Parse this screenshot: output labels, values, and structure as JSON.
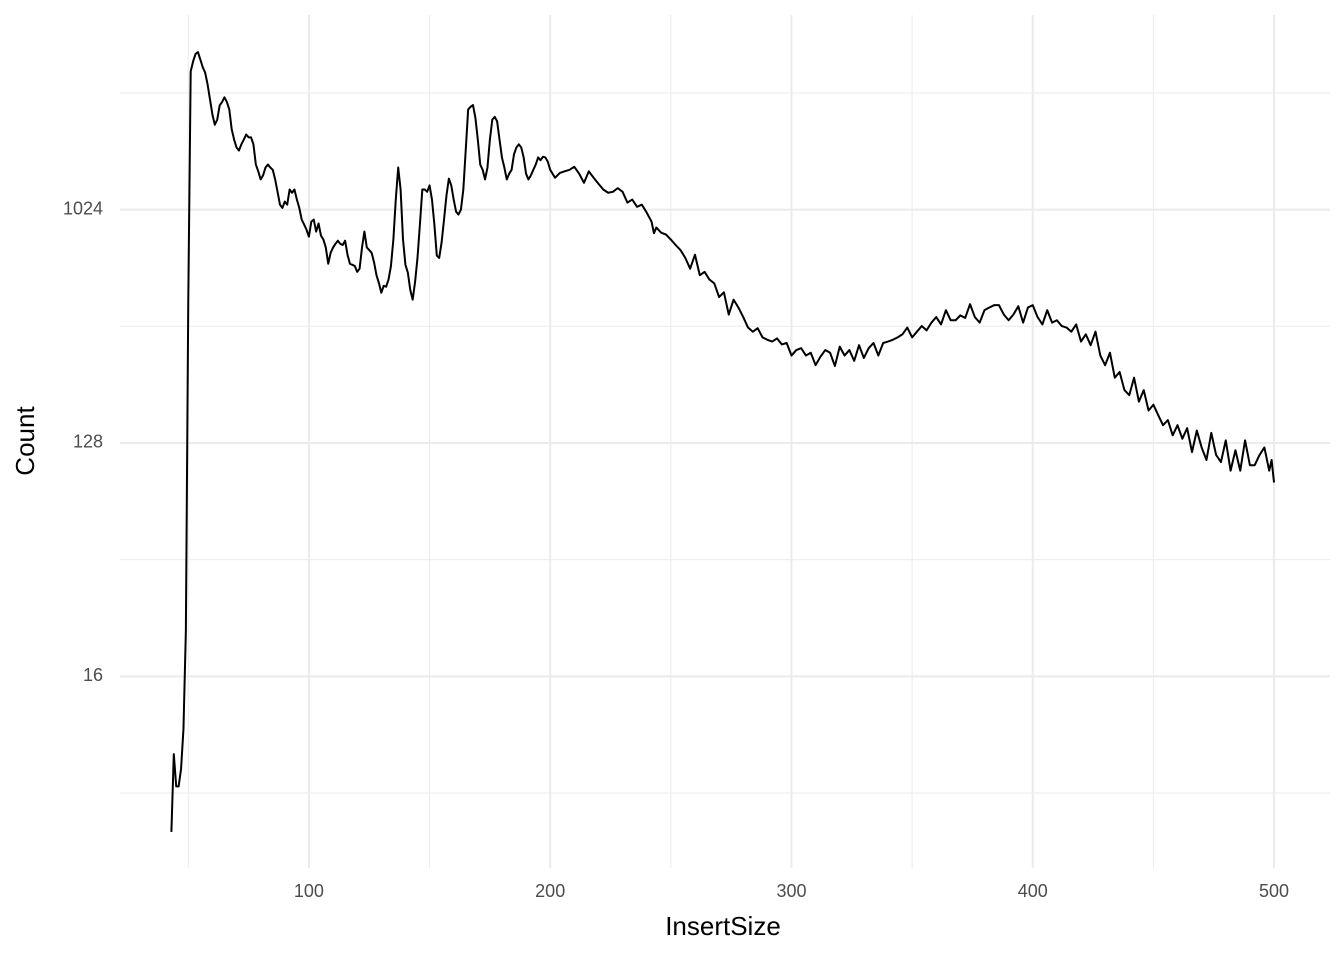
{
  "chart_data": {
    "type": "line",
    "xlabel": "InsertSize",
    "ylabel": "Count",
    "log_y": true,
    "log_base": 2,
    "grid": true,
    "color": "#000000",
    "xlim": [
      21.7,
      523.2
    ],
    "xticks": [
      100,
      200,
      300,
      400,
      500
    ],
    "x_minor_ticks": [
      50,
      150,
      250,
      350,
      450
    ],
    "ylim": [
      2.9,
      5800
    ],
    "yticks": [
      16,
      128,
      1024
    ],
    "y_minor_ticks": [
      5.66,
      45.25,
      362,
      2896
    ],
    "x": [
      43,
      44,
      45,
      46,
      47,
      48,
      49,
      50,
      51,
      52,
      53,
      54,
      55,
      56,
      57,
      58,
      59,
      60,
      61,
      62,
      63,
      64,
      65,
      66,
      67,
      68,
      69,
      70,
      71,
      72,
      73,
      74,
      75,
      76,
      77,
      78,
      79,
      80,
      81,
      82,
      83,
      84,
      85,
      86,
      87,
      88,
      89,
      90,
      91,
      92,
      93,
      94,
      95,
      96,
      97,
      98,
      99,
      100,
      101,
      102,
      103,
      104,
      105,
      106,
      107,
      108,
      109,
      110,
      111,
      112,
      113,
      114,
      115,
      116,
      117,
      118,
      119,
      120,
      121,
      122,
      123,
      124,
      125,
      126,
      127,
      128,
      129,
      130,
      131,
      132,
      133,
      134,
      135,
      136,
      137,
      138,
      139,
      140,
      141,
      142,
      143,
      144,
      145,
      146,
      147,
      148,
      149,
      150,
      151,
      152,
      153,
      154,
      155,
      156,
      157,
      158,
      159,
      160,
      161,
      162,
      163,
      164,
      165,
      166,
      167,
      168,
      169,
      170,
      171,
      172,
      173,
      174,
      175,
      176,
      177,
      178,
      179,
      180,
      181,
      182,
      183,
      184,
      185,
      186,
      187,
      188,
      189,
      190,
      191,
      192,
      193,
      194,
      195,
      196,
      197,
      198,
      199,
      200,
      202,
      204,
      206,
      208,
      210,
      212,
      214,
      216,
      218,
      220,
      222,
      224,
      226,
      228,
      230,
      232,
      234,
      236,
      238,
      240,
      242,
      243,
      244,
      246,
      248,
      250,
      252,
      254,
      256,
      258,
      260,
      262,
      264,
      266,
      268,
      270,
      272,
      274,
      276,
      278,
      280,
      282,
      284,
      286,
      288,
      290,
      292,
      294,
      296,
      298,
      300,
      302,
      304,
      306,
      308,
      310,
      312,
      314,
      316,
      318,
      320,
      322,
      324,
      326,
      328,
      330,
      332,
      334,
      336,
      338,
      340,
      342,
      344,
      346,
      348,
      350,
      352,
      354,
      356,
      358,
      360,
      362,
      364,
      366,
      368,
      370,
      372,
      374,
      376,
      378,
      380,
      382,
      384,
      386,
      388,
      390,
      392,
      394,
      396,
      398,
      400,
      402,
      404,
      406,
      408,
      410,
      412,
      414,
      416,
      418,
      420,
      422,
      424,
      426,
      428,
      430,
      432,
      434,
      436,
      438,
      440,
      442,
      444,
      446,
      448,
      450,
      452,
      454,
      456,
      458,
      460,
      462,
      464,
      466,
      468,
      470,
      472,
      474,
      476,
      478,
      480,
      482,
      484,
      486,
      488,
      490,
      492,
      494,
      496,
      498,
      499,
      500
    ],
    "values": [
      4,
      8,
      6,
      6,
      7,
      10,
      24,
      459,
      3510,
      3838,
      4096,
      4170,
      3900,
      3640,
      3470,
      3126,
      2733,
      2390,
      2182,
      2283,
      2590,
      2670,
      2785,
      2670,
      2500,
      2093,
      1910,
      1782,
      1733,
      1832,
      1910,
      2000,
      1950,
      1950,
      1832,
      1530,
      1440,
      1340,
      1390,
      1490,
      1530,
      1490,
      1460,
      1340,
      1200,
      1070,
      1040,
      1100,
      1070,
      1225,
      1190,
      1225,
      1120,
      1040,
      937,
      897,
      856,
      805,
      920,
      937,
      842,
      905,
      812,
      784,
      730,
      632,
      697,
      730,
      755,
      776,
      755,
      747,
      776,
      685,
      632,
      626,
      620,
      588,
      605,
      730,
      842,
      730,
      714,
      697,
      640,
      571,
      533,
      488,
      519,
      515,
      549,
      620,
      784,
      1120,
      1490,
      1225,
      784,
      626,
      584,
      501,
      459,
      537,
      666,
      897,
      1225,
      1225,
      1200,
      1270,
      1120,
      897,
      680,
      666,
      765,
      937,
      1160,
      1350,
      1270,
      1120,
      1005,
      980,
      1024,
      1225,
      1746,
      2500,
      2560,
      2600,
      2320,
      1910,
      1530,
      1460,
      1340,
      1490,
      1910,
      2283,
      2340,
      2250,
      1910,
      1630,
      1490,
      1340,
      1410,
      1460,
      1675,
      1782,
      1832,
      1782,
      1630,
      1410,
      1340,
      1390,
      1460,
      1530,
      1630,
      1590,
      1640,
      1630,
      1570,
      1460,
      1360,
      1420,
      1440,
      1460,
      1500,
      1410,
      1300,
      1440,
      1360,
      1290,
      1225,
      1190,
      1200,
      1240,
      1200,
      1090,
      1120,
      1050,
      1070,
      997,
      920,
      830,
      873,
      834,
      820,
      784,
      747,
      714,
      666,
      605,
      685,
      571,
      588,
      549,
      531,
      470,
      490,
      402,
      459,
      428,
      393,
      358,
      345,
      356,
      328,
      321,
      316,
      325,
      308,
      312,
      279,
      293,
      298,
      279,
      286,
      256,
      276,
      293,
      286,
      254,
      302,
      279,
      293,
      266,
      306,
      273,
      298,
      312,
      279,
      312,
      316,
      321,
      328,
      337,
      358,
      328,
      345,
      363,
      349,
      374,
      393,
      368,
      418,
      382,
      382,
      399,
      390,
      441,
      393,
      374,
      418,
      428,
      437,
      437,
      402,
      382,
      402,
      433,
      374,
      428,
      437,
      393,
      368,
      418,
      374,
      382,
      363,
      358,
      345,
      368,
      316,
      337,
      306,
      345,
      279,
      256,
      286,
      229,
      241,
      205,
      196,
      229,
      185,
      205,
      171,
      180,
      164,
      150,
      157,
      137,
      150,
      133,
      146,
      118,
      143,
      123,
      110,
      140,
      115,
      108,
      131,
      100,
      120,
      100,
      131,
      105,
      105,
      115,
      123,
      100,
      110,
      90
    ]
  }
}
